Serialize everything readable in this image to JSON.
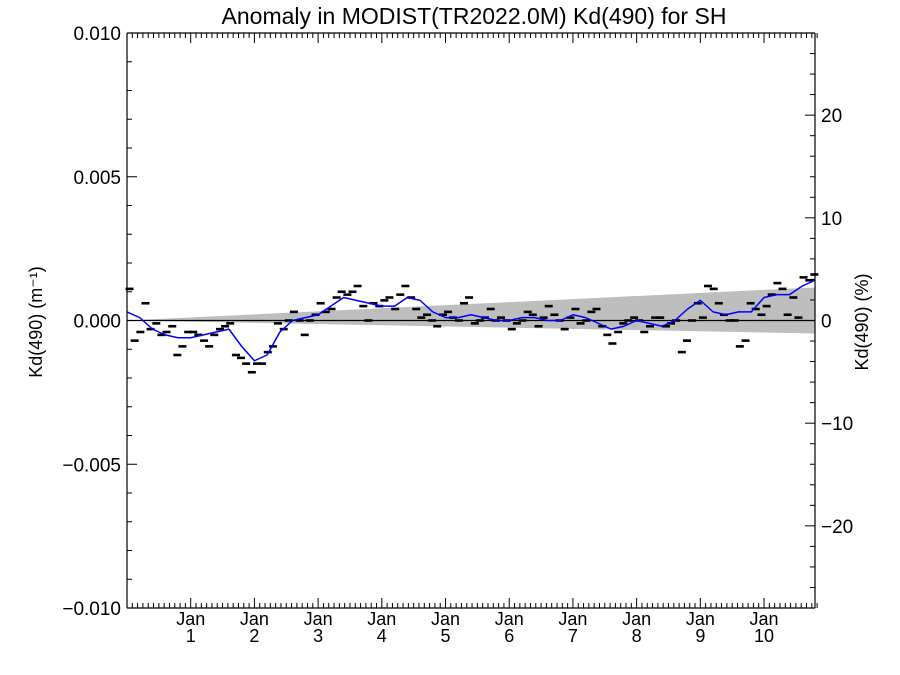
{
  "chart_data": {
    "type": "scatter",
    "title": "Anomaly in MODIST(TR2022.0M) Kd(490) for SH",
    "ylabel_left": "Kd(490) (m⁻¹)",
    "ylabel_right": "Kd(490) (%)",
    "xlabel": "",
    "xlim": [
      0,
      10.8
    ],
    "ylim": [
      -0.01,
      0.01
    ],
    "y2lim": [
      -28,
      28
    ],
    "grid": false,
    "x_ticks": [
      {
        "x": 1,
        "top": "Jan",
        "bottom": "1"
      },
      {
        "x": 2,
        "top": "Jan",
        "bottom": "2"
      },
      {
        "x": 3,
        "top": "Jan",
        "bottom": "3"
      },
      {
        "x": 4,
        "top": "Jan",
        "bottom": "4"
      },
      {
        "x": 5,
        "top": "Jan",
        "bottom": "5"
      },
      {
        "x": 6,
        "top": "Jan",
        "bottom": "6"
      },
      {
        "x": 7,
        "top": "Jan",
        "bottom": "7"
      },
      {
        "x": 8,
        "top": "Jan",
        "bottom": "8"
      },
      {
        "x": 9,
        "top": "Jan",
        "bottom": "9"
      },
      {
        "x": 10,
        "top": "Jan",
        "bottom": "10"
      }
    ],
    "y_ticks": [
      "0.010",
      "0.005",
      "0.000",
      "−0.005",
      "−0.010"
    ],
    "y_tick_values": [
      0.01,
      0.005,
      0.0,
      -0.005,
      -0.01
    ],
    "y2_ticks": [
      "20",
      "10",
      "0",
      "−10",
      "−20"
    ],
    "y2_tick_values": [
      20,
      10,
      0,
      -10,
      -20
    ],
    "trend_line": {
      "x": [
        0,
        10.8
      ],
      "y": [
        0.0,
        0.0
      ],
      "color": "#000000"
    },
    "confidence_band": {
      "x": [
        0,
        10.8
      ],
      "upper": [
        0.0,
        0.00115
      ],
      "lower": [
        0.0,
        -0.00045
      ],
      "color": "#bebebe"
    },
    "series": [
      {
        "name": "",
        "kind": "monthly_anomaly",
        "color": "#000000",
        "x": [
          0.04,
          0.12,
          0.21,
          0.29,
          0.37,
          0.46,
          0.54,
          0.62,
          0.71,
          0.79,
          0.87,
          0.96,
          1.04,
          1.12,
          1.21,
          1.29,
          1.37,
          1.46,
          1.54,
          1.62,
          1.71,
          1.79,
          1.87,
          1.96,
          2.04,
          2.12,
          2.21,
          2.29,
          2.37,
          2.46,
          2.54,
          2.62,
          2.71,
          2.79,
          2.87,
          2.96,
          3.04,
          3.12,
          3.21,
          3.29,
          3.37,
          3.46,
          3.54,
          3.62,
          3.71,
          3.79,
          3.87,
          3.96,
          4.04,
          4.12,
          4.21,
          4.29,
          4.37,
          4.46,
          4.54,
          4.62,
          4.71,
          4.79,
          4.87,
          4.96,
          5.04,
          5.12,
          5.21,
          5.29,
          5.37,
          5.46,
          5.54,
          5.62,
          5.71,
          5.79,
          5.87,
          5.96,
          6.04,
          6.12,
          6.21,
          6.29,
          6.37,
          6.46,
          6.54,
          6.62,
          6.71,
          6.79,
          6.87,
          6.96,
          7.04,
          7.12,
          7.21,
          7.29,
          7.37,
          7.46,
          7.54,
          7.62,
          7.71,
          7.79,
          7.87,
          7.96,
          8.04,
          8.12,
          8.21,
          8.29,
          8.37,
          8.46,
          8.54,
          8.62,
          8.71,
          8.79,
          8.87,
          8.96,
          9.04,
          9.12,
          9.21,
          9.29,
          9.37,
          9.46,
          9.54,
          9.62,
          9.71,
          9.79,
          9.87,
          9.96,
          10.04,
          10.12,
          10.21,
          10.29,
          10.37,
          10.46,
          10.54,
          10.62,
          10.71,
          10.79
        ],
        "y": [
          0.0011,
          -0.0007,
          -0.0004,
          0.0006,
          -0.0003,
          -0.0001,
          -0.0005,
          -0.0004,
          -0.0002,
          -0.0012,
          -0.0009,
          -0.0004,
          -0.0004,
          -0.0005,
          -0.0007,
          -0.0009,
          -0.0005,
          -0.0003,
          -0.0002,
          -0.0001,
          -0.0012,
          -0.0013,
          -0.0015,
          -0.0018,
          -0.0015,
          -0.0015,
          -0.0011,
          -0.0009,
          -0.0001,
          -0.0003,
          0.0,
          0.0003,
          0.0,
          -0.0005,
          0.0,
          0.0002,
          0.0006,
          0.0003,
          0.0004,
          0.0008,
          0.001,
          0.0009,
          0.001,
          0.0012,
          0.0005,
          0.0,
          0.0006,
          0.0005,
          0.0007,
          0.0008,
          0.0004,
          0.0009,
          0.0012,
          0.0008,
          0.0004,
          0.0001,
          0.0002,
          0.0,
          -0.0002,
          0.0002,
          0.0003,
          0.0001,
          0.0,
          0.0006,
          0.0008,
          -0.0001,
          0.0,
          0.0001,
          0.0004,
          0.0,
          0.0001,
          0.0,
          -0.0003,
          -0.0001,
          0.0,
          0.0003,
          0.0002,
          -0.0002,
          0.0001,
          0.0005,
          0.0002,
          0.0,
          -0.0003,
          0.0001,
          0.0004,
          -0.0001,
          0.0,
          0.0003,
          0.0004,
          -0.0002,
          -0.0005,
          -0.0008,
          -0.0004,
          -0.0001,
          0.0,
          0.0001,
          0.0,
          -0.0004,
          -0.0002,
          0.0001,
          0.0001,
          -0.0002,
          -0.0001,
          0.0,
          -0.0011,
          -0.0007,
          0.0,
          0.0006,
          0.0001,
          0.0012,
          0.0011,
          0.0006,
          0.0002,
          0.0,
          0.0,
          -0.0009,
          -0.0007,
          0.0006,
          0.0004,
          0.0002,
          0.0005,
          0.0009,
          0.0013,
          0.0011,
          0.0002,
          0.0008,
          0.0001,
          0.0015,
          0.0014,
          0.0016
        ]
      },
      {
        "name": "",
        "kind": "running_mean",
        "color": "#0000ff",
        "x": [
          0,
          0.2,
          0.4,
          0.6,
          0.8,
          1.0,
          1.2,
          1.4,
          1.6,
          1.8,
          2.0,
          2.2,
          2.4,
          2.6,
          2.8,
          3.0,
          3.2,
          3.4,
          3.6,
          3.8,
          4.0,
          4.2,
          4.4,
          4.6,
          4.8,
          5.0,
          5.2,
          5.4,
          5.6,
          5.8,
          6.0,
          6.2,
          6.4,
          6.6,
          6.8,
          7.0,
          7.2,
          7.4,
          7.6,
          7.8,
          8.0,
          8.2,
          8.4,
          8.6,
          8.8,
          9.0,
          9.2,
          9.4,
          9.6,
          9.8,
          10.0,
          10.2,
          10.4,
          10.6,
          10.8
        ],
        "y": [
          0.0003,
          0.0001,
          -0.0003,
          -0.0005,
          -0.0006,
          -0.0006,
          -0.0005,
          -0.0004,
          -0.0003,
          -0.0009,
          -0.0014,
          -0.0012,
          -0.0004,
          0.0,
          0.0001,
          0.0002,
          0.0005,
          0.0008,
          0.0007,
          0.0006,
          0.0005,
          0.0005,
          0.0008,
          0.0007,
          0.0003,
          0.0001,
          0.0001,
          0.0002,
          0.0001,
          0.0,
          0.0,
          0.0001,
          0.0001,
          0.0,
          0.0,
          0.0002,
          0.0001,
          -0.0001,
          -0.0003,
          -0.0002,
          0.0,
          -0.0001,
          -0.0002,
          0.0,
          0.0004,
          0.0007,
          0.0003,
          0.0002,
          0.0003,
          0.0003,
          0.0008,
          0.0009,
          0.0009,
          0.0012,
          0.0014
        ]
      }
    ]
  }
}
